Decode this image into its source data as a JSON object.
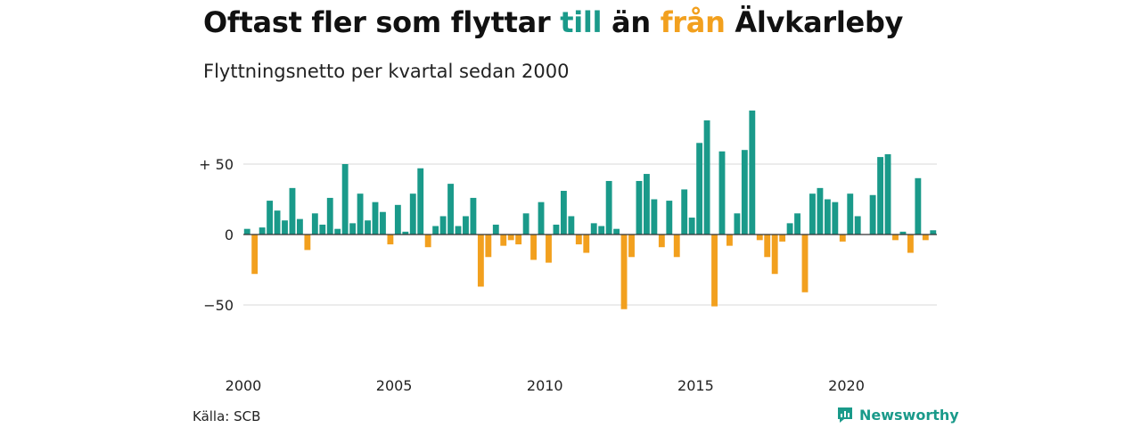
{
  "header": {
    "title_part1": "Oftast fler som flyttar ",
    "title_till": "till",
    "title_part2": " än ",
    "title_fran": "från",
    "title_part3": " Älvkarleby",
    "subtitle": "Flyttningsnetto per kvartal sedan 2000"
  },
  "footer": {
    "source": "Källa: SCB",
    "brand": "Newsworthy",
    "brand_icon": "chart-logo-icon"
  },
  "colors": {
    "positive": "#1a9a8a",
    "negative": "#f2a01e",
    "grid": "#d9d9d9"
  },
  "chart_data": {
    "type": "bar",
    "title": "Oftast fler som flyttar till än från Älvkarleby",
    "subtitle": "Flyttningsnetto per kvartal sedan 2000",
    "x_start": "2000-Q1",
    "frequency": "quarterly",
    "x_ticks": [
      "2000",
      "2005",
      "2010",
      "2015",
      "2020"
    ],
    "y_ticks": [
      {
        "value": 50,
        "label": "+ 50"
      },
      {
        "value": 0,
        "label": "0"
      },
      {
        "value": -50,
        "label": "−50"
      }
    ],
    "ylim": [
      -88,
      88
    ],
    "grid": true,
    "values": [
      4,
      -28,
      5,
      24,
      17,
      10,
      33,
      11,
      -11,
      15,
      7,
      26,
      4,
      50,
      8,
      29,
      10,
      23,
      16,
      -7,
      21,
      2,
      29,
      47,
      -9,
      6,
      13,
      36,
      6,
      13,
      26,
      -37,
      -16,
      7,
      -8,
      -4,
      -7,
      15,
      -18,
      23,
      -20,
      7,
      31,
      13,
      -7,
      -13,
      8,
      6,
      38,
      4,
      -53,
      -16,
      38,
      43,
      25,
      -9,
      24,
      -16,
      32,
      12,
      65,
      81,
      -51,
      59,
      -8,
      15,
      60,
      88,
      -4,
      -16,
      -28,
      -5,
      8,
      15,
      -41,
      29,
      33,
      25,
      23,
      -5,
      29,
      13,
      0,
      28,
      55,
      57,
      -4,
      2,
      -13,
      40,
      -4,
      3
    ]
  }
}
